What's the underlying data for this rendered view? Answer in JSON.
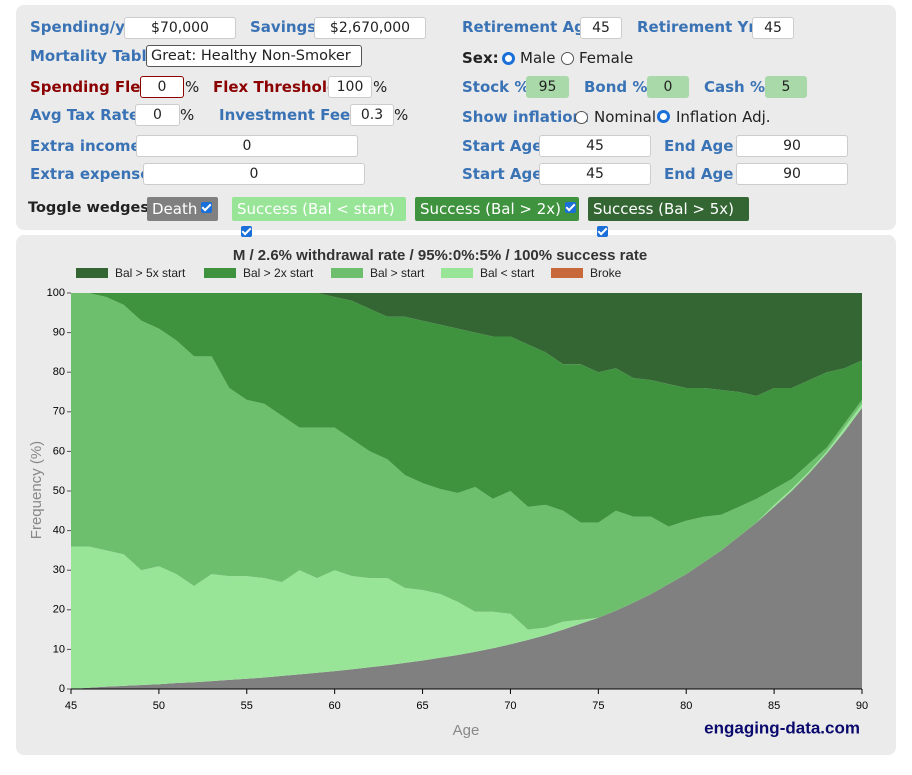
{
  "controls": {
    "spending": {
      "label": "Spending/yr",
      "value": "$70,000"
    },
    "savings": {
      "label": "Savings",
      "value": "$2,670,000"
    },
    "retirement_age": {
      "label": "Retirement Age",
      "value": "45"
    },
    "retirement_yrs": {
      "label": "Retirement Yrs",
      "value": "45"
    },
    "mortality": {
      "label": "Mortality Table:",
      "value": "Great: Healthy Non-Smoker"
    },
    "sex": {
      "label": "Sex:",
      "options": [
        "Male",
        "Female"
      ]
    },
    "spending_flex": {
      "label": "Spending Flex",
      "value": "0",
      "unit": "%"
    },
    "flex_threshold": {
      "label": "Flex Threshold",
      "value": "100",
      "unit": "%"
    },
    "stock": {
      "label": "Stock %",
      "value": "95"
    },
    "bond": {
      "label": "Bond %",
      "value": "0"
    },
    "cash": {
      "label": "Cash %",
      "value": "5"
    },
    "tax_rate": {
      "label": "Avg Tax Rate",
      "value": "0",
      "unit": "%"
    },
    "fees": {
      "label": "Investment Fees",
      "value": "0.3",
      "unit": "%"
    },
    "inflation": {
      "label": "Show inflation:",
      "options": [
        "Nominal",
        "Inflation Adj."
      ]
    },
    "extra_income": {
      "label": "Extra income",
      "value": "0",
      "start_label": "Start Age",
      "start": "45",
      "end_label": "End Age",
      "end": "90"
    },
    "extra_expense": {
      "label": "Extra expense",
      "value": "0",
      "start_label": "Start Age",
      "start": "45",
      "end_label": "End Age",
      "end": "90"
    },
    "toggle_label": "Toggle wedges:",
    "toggles": [
      "Success (Bal < start)",
      "Success (Bal > 2x)",
      "Success (Bal > 5x)"
    ],
    "watermark": "engaging-data.com"
  },
  "chart_data": {
    "type": "stacked-area",
    "title": "M / 2.6% withdrawal rate / 95%:0%:5% / 100% success rate",
    "x_label": "Age",
    "y_label": "Frequency (%)",
    "x": [
      45,
      46,
      47,
      48,
      49,
      50,
      51,
      52,
      53,
      54,
      55,
      56,
      57,
      58,
      59,
      60,
      61,
      62,
      63,
      64,
      65,
      66,
      67,
      68,
      69,
      70,
      71,
      72,
      73,
      74,
      75,
      76,
      77,
      78,
      79,
      80,
      81,
      82,
      83,
      84,
      85,
      86,
      87,
      88,
      89,
      90
    ],
    "xlim": [
      45,
      90
    ],
    "xticks": [
      45,
      50,
      55,
      60,
      65,
      70,
      75,
      80,
      85,
      90
    ],
    "ylim": [
      0,
      100
    ],
    "yticks": [
      0,
      10,
      20,
      30,
      40,
      50,
      60,
      70,
      80,
      90,
      100
    ],
    "series": [
      {
        "name": "Death",
        "color": "#808080",
        "values": [
          0,
          0.3,
          0.6,
          0.8,
          1,
          1.2,
          1.5,
          1.7,
          2,
          2.3,
          2.6,
          2.9,
          3.3,
          3.7,
          4.1,
          4.5,
          5,
          5.5,
          6,
          6.6,
          7.2,
          7.9,
          8.6,
          9.4,
          10.3,
          11.3,
          12.4,
          13.6,
          15,
          16.5,
          18,
          19.8,
          21.8,
          24,
          26.5,
          29,
          32,
          35,
          38.5,
          42,
          46,
          50,
          54.5,
          59.5,
          65,
          71
        ]
      },
      {
        "name": "Broke",
        "color": "#c8693c",
        "values": [
          0,
          0,
          0,
          0,
          0,
          0,
          0,
          0,
          0,
          0,
          0,
          0,
          0,
          0,
          0,
          0,
          0,
          0,
          0,
          0,
          0,
          0,
          0,
          0,
          0,
          0,
          0,
          0,
          0,
          0,
          0,
          0,
          0,
          0,
          0,
          0,
          0,
          0,
          0,
          0,
          0,
          0,
          0,
          0,
          0,
          0
        ]
      },
      {
        "name": "Bal < start",
        "color": "#98e598",
        "values": [
          36,
          35.7,
          34.4,
          33.2,
          29,
          29.8,
          27.5,
          24.3,
          27,
          26.2,
          25.9,
          25.1,
          23.7,
          26.3,
          23.9,
          25.5,
          23.5,
          22.5,
          22,
          18.9,
          17.8,
          16.1,
          13.4,
          10.1,
          9.2,
          7.7,
          2.6,
          1.9,
          2,
          1,
          0,
          0,
          0,
          0,
          0,
          0,
          0,
          0,
          0,
          0,
          0.5,
          0.5,
          0.5,
          0.5,
          1,
          1
        ]
      },
      {
        "name": "Bal > start",
        "color": "#6dbf6d",
        "values": [
          64,
          64,
          64,
          63,
          63,
          60,
          59,
          58,
          55,
          47.5,
          44.5,
          44,
          42,
          36,
          38,
          36,
          34.5,
          32,
          30,
          28.5,
          27,
          26.5,
          27.5,
          31.5,
          28.5,
          31,
          31,
          31,
          28,
          24.5,
          24,
          25.2,
          21.7,
          19.5,
          14.5,
          13.5,
          11.5,
          9,
          7.5,
          6,
          4,
          2.5,
          2,
          1,
          1,
          1
        ]
      },
      {
        "name": "Bal > 2x start",
        "color": "#3f933f",
        "values": [
          0,
          0,
          1,
          3,
          7,
          9,
          12,
          16,
          16,
          24,
          27,
          28,
          31,
          34,
          34,
          33,
          35,
          36,
          36,
          40,
          41,
          41.5,
          41.5,
          39,
          41,
          39,
          41,
          38.5,
          37,
          40,
          38,
          36,
          35,
          34.5,
          36,
          33.5,
          32.5,
          31.5,
          29,
          26,
          25.5,
          23,
          21,
          19,
          14,
          10
        ]
      },
      {
        "name": "Bal > 5x start",
        "color": "#336633",
        "values": [
          0,
          0,
          0,
          0,
          0,
          0,
          0,
          0,
          0,
          0,
          0,
          0,
          0,
          0,
          0,
          1,
          2,
          4,
          6,
          6,
          7,
          8,
          9,
          10,
          11,
          11,
          13,
          15,
          18,
          18,
          20,
          19,
          21.5,
          22,
          23,
          24,
          24,
          24.5,
          25,
          26,
          24,
          24,
          22,
          20,
          19,
          17
        ]
      }
    ]
  }
}
